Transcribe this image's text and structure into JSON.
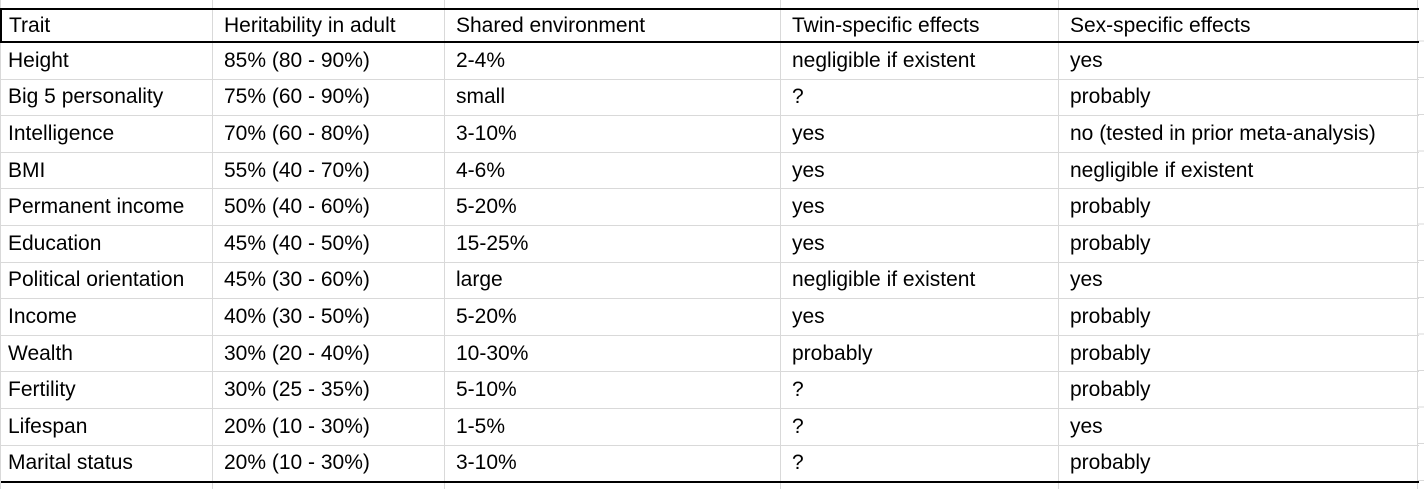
{
  "chart_data": {
    "type": "table",
    "columns": [
      "Trait",
      "Heritability in adult",
      "Shared environment",
      "Twin-specific effects",
      "Sex-specific effects"
    ],
    "rows": [
      [
        "Height",
        "85% (80 - 90%)",
        "2-4%",
        "negligible if existent",
        "yes"
      ],
      [
        "Big 5 personality",
        "75% (60 - 90%)",
        "small",
        "?",
        "probably"
      ],
      [
        "Intelligence",
        "70% (60 - 80%)",
        "3-10%",
        "yes",
        "no (tested in prior meta-analysis)"
      ],
      [
        "BMI",
        "55% (40 - 70%)",
        "4-6%",
        "yes",
        "negligible if existent"
      ],
      [
        "Permanent income",
        "50% (40 - 60%)",
        "5-20%",
        "yes",
        "probably"
      ],
      [
        "Education",
        "45% (40 - 50%)",
        "15-25%",
        "yes",
        "probably"
      ],
      [
        "Political orientation",
        "45% (30 - 60%)",
        "large",
        "negligible if existent",
        "yes"
      ],
      [
        "Income",
        "40% (30 - 50%)",
        "5-20%",
        "yes",
        "probably"
      ],
      [
        "Wealth",
        "30% (20 - 40%)",
        "10-30%",
        "probably",
        "probably"
      ],
      [
        "Fertility",
        "30% (25 - 35%)",
        "5-10%",
        "?",
        "probably"
      ],
      [
        "Lifespan",
        "20% (10 - 30%)",
        "1-5%",
        "?",
        "yes"
      ],
      [
        "Marital status",
        "20% (10 - 30%)",
        "3-10%",
        "?",
        "probably"
      ]
    ],
    "layout": {
      "grid": "on",
      "header_border": "thick-black-top-and-bottom",
      "bottom_border": "thick-black"
    }
  },
  "colors": {
    "border_strong": "#000000",
    "gridline": "#d9d9d9",
    "text": "#000000",
    "background": "#ffffff"
  }
}
